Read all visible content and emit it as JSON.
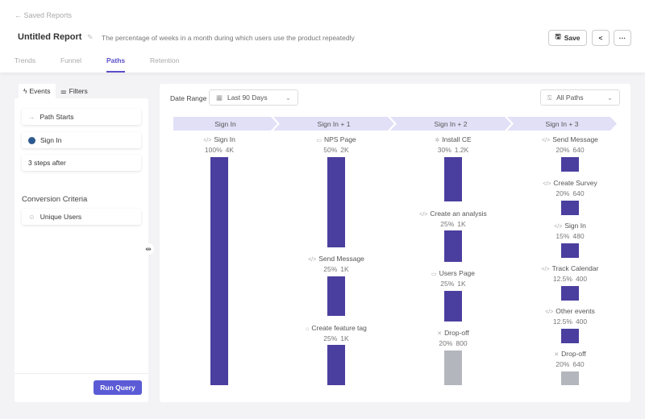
{
  "header": {
    "back_label": "Saved Reports",
    "title": "Untitled Report",
    "description": "The percentage of weeks in a month during which users use the product repeatedly",
    "save_label": "Save",
    "more_label": "···"
  },
  "tabs": [
    {
      "label": "Trends"
    },
    {
      "label": "Funnel"
    },
    {
      "label": "Paths",
      "active": true
    },
    {
      "label": "Retention"
    }
  ],
  "left_panel": {
    "tabs": [
      {
        "label": "Events",
        "active": true
      },
      {
        "label": "Filters"
      }
    ],
    "path_starts_label": "Path Starts",
    "start_event": "Sign In",
    "steps_after": "3 steps after",
    "conversion_criteria_title": "Conversion Criteria",
    "conversion_criteria_value": "Unique Users",
    "run_query_label": "Run Query"
  },
  "main": {
    "date_range_label": "Date Range",
    "date_range_value": "Last 90 Days",
    "paths_filter_value": "All Paths",
    "colors": {
      "bar": "#4a3f9f",
      "dropoff": "#b3b7bd",
      "step_header": "#e2e0f7"
    },
    "columns": [
      {
        "header": "Sign In",
        "nodes": [
          {
            "label": "Sign In",
            "pct": "100%",
            "count": "4K",
            "icon": "code-icon"
          }
        ]
      },
      {
        "header": "Sign In + 1",
        "nodes": [
          {
            "label": "NPS Page",
            "pct": "50%",
            "count": "2K",
            "icon": "page-icon"
          },
          {
            "label": "Send Message",
            "pct": "25%",
            "count": "1K",
            "icon": "code-icon"
          },
          {
            "label": "Create feature tag",
            "pct": "25%",
            "count": "1K",
            "icon": "tag-icon"
          }
        ]
      },
      {
        "header": "Sign In + 2",
        "nodes": [
          {
            "label": "Install CE",
            "pct": "30%",
            "count": "1.2K",
            "icon": "gear-icon"
          },
          {
            "label": "Create an analysis",
            "pct": "25%",
            "count": "1K",
            "icon": "code-icon"
          },
          {
            "label": "Users Page",
            "pct": "25%",
            "count": "1K",
            "icon": "page-icon"
          },
          {
            "label": "Drop-off",
            "pct": "20%",
            "count": "800",
            "icon": "close-icon",
            "dropoff": true
          }
        ]
      },
      {
        "header": "Sign In + 3",
        "nodes": [
          {
            "label": "Send Message",
            "pct": "20%",
            "count": "640",
            "icon": "code-icon"
          },
          {
            "label": "Create Survey",
            "pct": "20%",
            "count": "640",
            "icon": "code-icon"
          },
          {
            "label": "Sign In",
            "pct": "15%",
            "count": "480",
            "icon": "code-icon"
          },
          {
            "label": "Track Calendar",
            "pct": "12.5%",
            "count": "400",
            "icon": "code-icon"
          },
          {
            "label": "Other events",
            "pct": "12.5%",
            "count": "400",
            "icon": "code-icon"
          },
          {
            "label": "Drop-off",
            "pct": "20%",
            "count": "640",
            "icon": "close-icon",
            "dropoff": true
          }
        ]
      }
    ]
  }
}
